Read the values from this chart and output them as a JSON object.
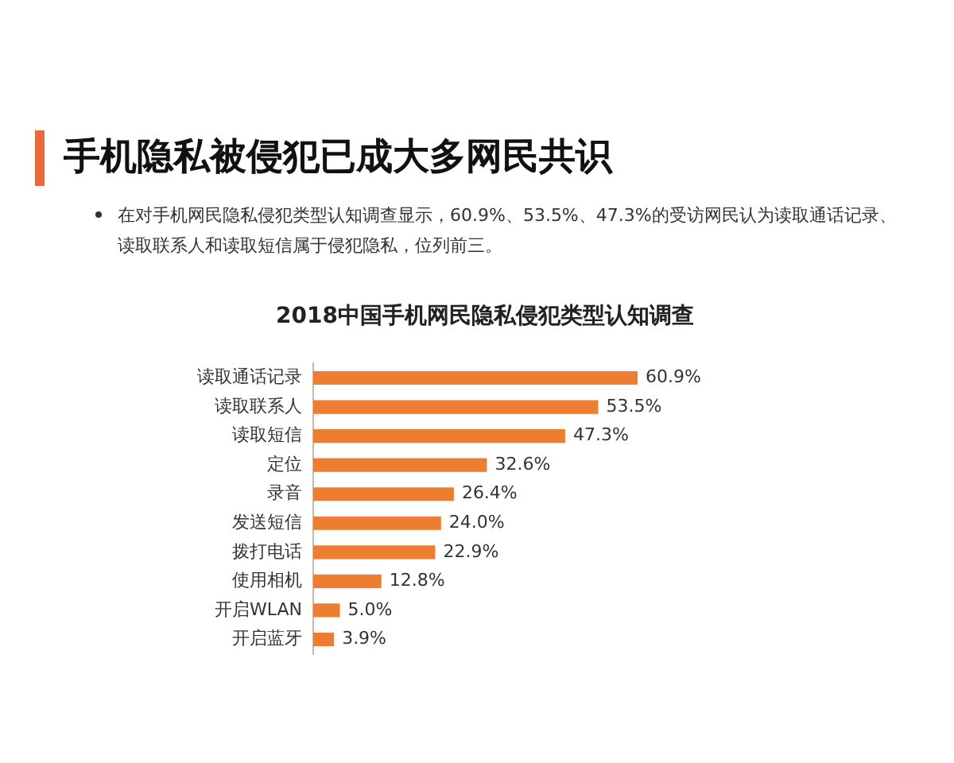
{
  "chart_data": {
    "type": "bar",
    "orientation": "horizontal",
    "title": "手机隐私被侵犯已成大多网民共识",
    "subtitle": "在对手机网民隐私侵犯类型认知调查显示，60.9%、53.5%、47.3%的受访网民认为读取通话记录、读取联系人和读取短信属于侵犯隐私，位列前三。",
    "annotations": [
      "2018中国手机网民隐私侵犯类型认知调查"
    ],
    "categories": [
      "读取通话记录",
      "读取联系人",
      "读取短信",
      "定位",
      "录音",
      "发送短信",
      "拨打电话",
      "使用相机",
      "开启WLAN",
      "开启蓝牙"
    ],
    "values": [
      60.9,
      53.5,
      47.3,
      32.6,
      26.4,
      24.0,
      22.9,
      12.8,
      5.0,
      3.9
    ],
    "value_labels": [
      "60.9%",
      "53.5%",
      "47.3%",
      "32.6%",
      "26.4%",
      "24.0%",
      "22.9%",
      "12.8%",
      "5.0%",
      "3.9%"
    ],
    "color": "#ed7d31"
  }
}
